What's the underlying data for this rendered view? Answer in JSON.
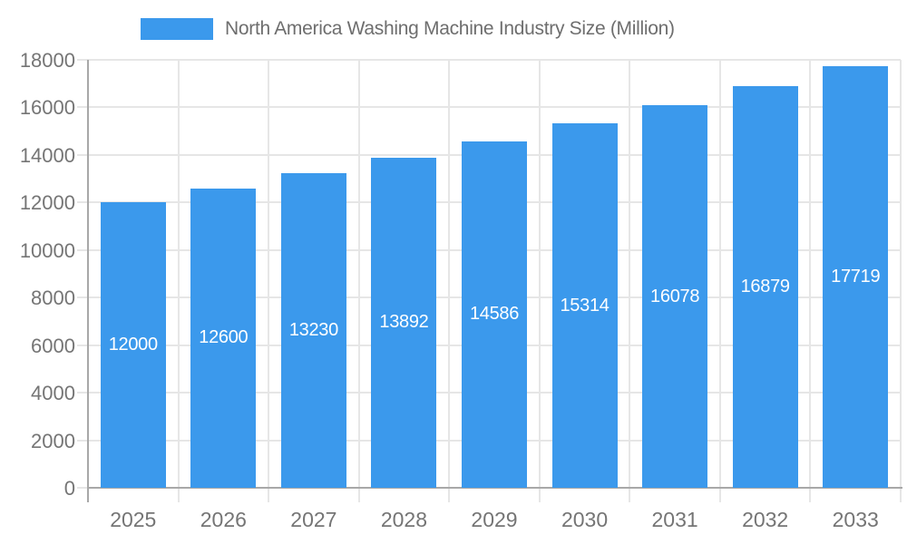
{
  "legend": {
    "label": "North America Washing Machine Industry Size (Million)",
    "swatch_color": "#3B99EC"
  },
  "chart_data": {
    "type": "bar",
    "title": "",
    "series_name": "North America Washing Machine Industry Size (Million)",
    "categories": [
      "2025",
      "2026",
      "2027",
      "2028",
      "2029",
      "2030",
      "2031",
      "2032",
      "2033"
    ],
    "values": [
      12000,
      12600,
      13230,
      13892,
      14586,
      15314,
      16078,
      16879,
      17719
    ],
    "value_labels": [
      "12000",
      "12600",
      "13230",
      "13892",
      "14586",
      "15314",
      "16078",
      "16879",
      "17719"
    ],
    "xlabel": "",
    "ylabel": "",
    "ylim": [
      0,
      18000
    ],
    "yticks": [
      0,
      2000,
      4000,
      6000,
      8000,
      10000,
      12000,
      14000,
      16000,
      18000
    ],
    "ytick_labels": [
      "0",
      "2000",
      "4000",
      "6000",
      "8000",
      "10000",
      "12000",
      "14000",
      "16000",
      "18000"
    ],
    "grid": "horizontal and vertical gridlines, shown",
    "legend_position": "top",
    "value_label_position": "centered inside bar"
  },
  "colors": {
    "bar": "#3B99EC",
    "value_label": "#ffffff",
    "gridline": "#e6e6e6",
    "axis_line": "#a8a8a8",
    "axis_text": "#757575",
    "legend_text": "#6e6e6e",
    "background": "#ffffff"
  }
}
